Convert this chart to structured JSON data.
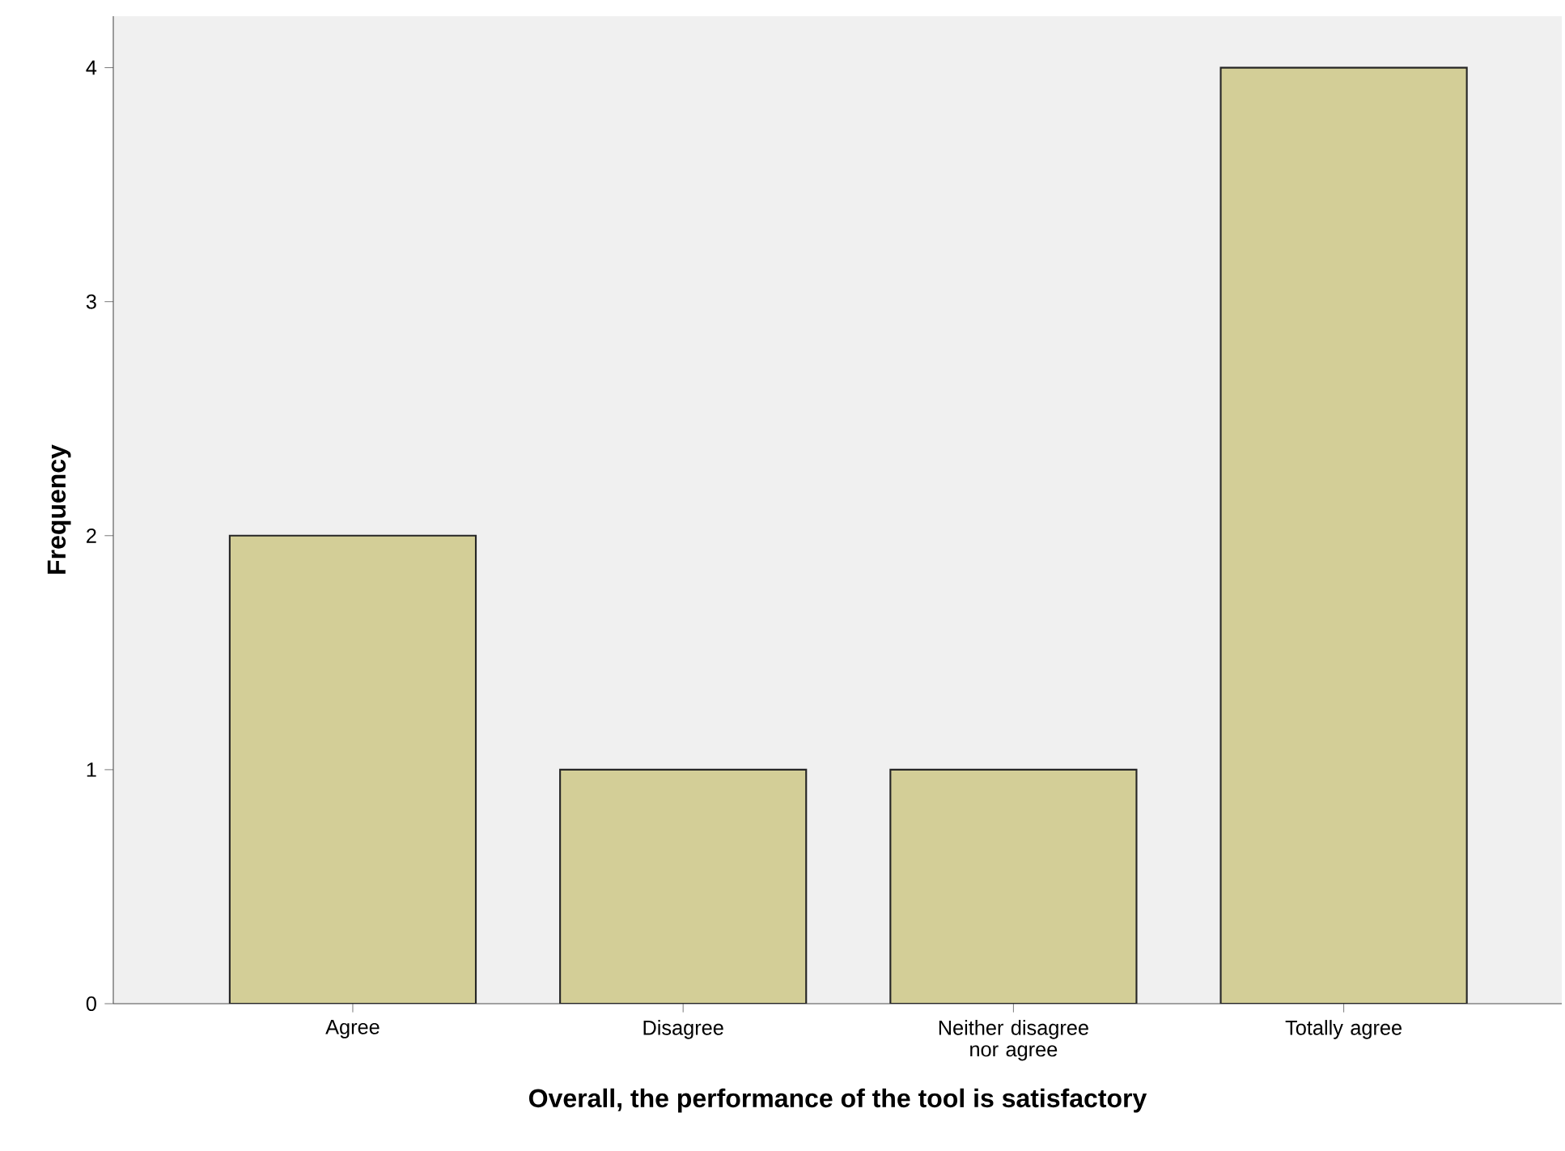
{
  "chart_data": {
    "type": "bar",
    "xlabel": "Overall, the performance of the tool is satisfactory",
    "ylabel": "Frequency",
    "categories": [
      "Agree",
      "Disagree",
      "Neither disagree nor agree",
      "Totally agree"
    ],
    "values": [
      2,
      1,
      1,
      4
    ],
    "color": "#d3ce97",
    "ylim": [
      0,
      4.22
    ],
    "yticks": [
      0,
      1,
      2,
      3,
      4
    ]
  }
}
